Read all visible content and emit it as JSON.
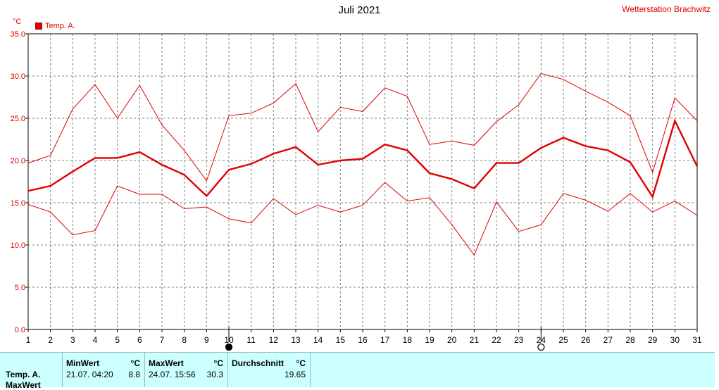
{
  "header": {
    "title": "Juli 2021",
    "station": "Wetterstation Brachwitz",
    "unit": "°C"
  },
  "legend": {
    "label": "Temp. A.",
    "color": "#e00000"
  },
  "chart_data": {
    "type": "line",
    "ylim": [
      0,
      35
    ],
    "yticks": [
      "0.0",
      "5.0",
      "10.0",
      "15.0",
      "20.0",
      "25.0",
      "30.0",
      "35.0"
    ],
    "x": [
      1,
      2,
      3,
      4,
      5,
      6,
      7,
      8,
      9,
      10,
      11,
      12,
      13,
      14,
      15,
      16,
      17,
      18,
      19,
      20,
      21,
      22,
      23,
      24,
      25,
      26,
      27,
      28,
      29,
      30,
      31
    ],
    "grid": true,
    "series": [
      {
        "name": "Temp. A.",
        "values": [
          16.4,
          17.0,
          18.7,
          20.3,
          20.3,
          21.0,
          19.5,
          18.3,
          15.8,
          18.9,
          19.6,
          20.8,
          21.6,
          19.5,
          20.0,
          20.2,
          21.9,
          21.2,
          18.5,
          17.8,
          16.7,
          19.7,
          19.7,
          21.5,
          22.7,
          21.7,
          21.2,
          19.8,
          15.7,
          24.7,
          19.3
        ]
      },
      {
        "values": [
          19.7,
          20.6,
          26.1,
          29.0,
          25.0,
          28.9,
          24.2,
          21.2,
          17.6,
          25.3,
          25.6,
          26.8,
          29.1,
          23.4,
          26.3,
          25.8,
          28.6,
          27.6,
          21.9,
          22.3,
          21.8,
          24.6,
          26.6,
          30.3,
          29.6,
          28.2,
          26.9,
          25.3,
          18.6,
          27.4,
          24.7
        ]
      },
      {
        "values": [
          14.8,
          13.9,
          11.2,
          11.7,
          17.0,
          16.0,
          16.0,
          14.3,
          14.5,
          13.1,
          12.6,
          15.5,
          13.6,
          14.7,
          13.9,
          14.7,
          17.4,
          15.2,
          15.6,
          12.4,
          8.8,
          15.1,
          11.6,
          12.4,
          16.1,
          15.3,
          14.0,
          16.1,
          13.9,
          15.2,
          13.5
        ]
      }
    ],
    "markers": [
      {
        "day": 10,
        "type": "filled"
      },
      {
        "day": 24,
        "type": "open"
      }
    ]
  },
  "stats": {
    "row_label": "Temp. A.",
    "row_label_2": "MaxWert",
    "min": {
      "header": "MinWert",
      "unit": "°C",
      "time": "21.07.  04:20",
      "value": "8.8"
    },
    "max": {
      "header": "MaxWert",
      "unit": "°C",
      "time": "24.07.  15:56",
      "value": "30.3"
    },
    "avg": {
      "header": "Durchschnitt",
      "unit": "°C",
      "value": "19.65"
    }
  }
}
